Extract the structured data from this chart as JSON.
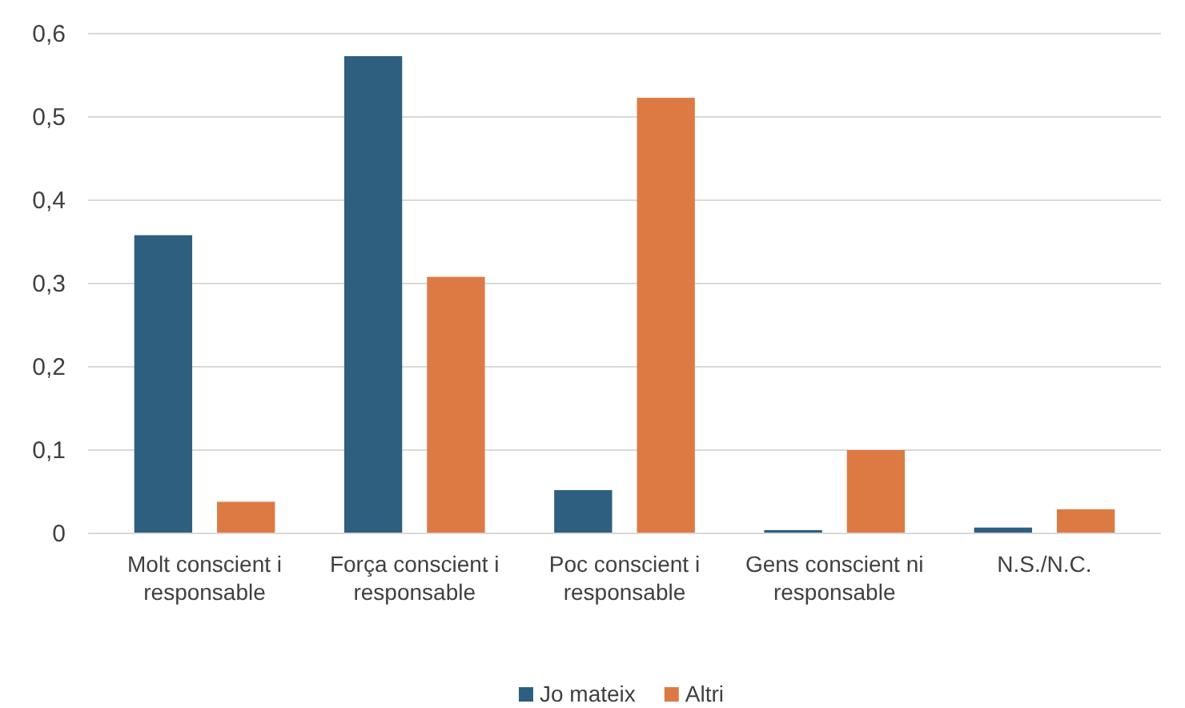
{
  "chart_data": {
    "type": "bar",
    "categories": [
      "Molt conscient i responsable",
      "Força conscient i responsable",
      "Poc conscient i responsable",
      "Gens conscient ni responsable",
      "N.S./N.C."
    ],
    "series": [
      {
        "name": "Jo mateix",
        "color": "#2e5f7f",
        "values": [
          0.358,
          0.573,
          0.052,
          0.004,
          0.007
        ]
      },
      {
        "name": "Altri",
        "color": "#dd7a44",
        "values": [
          0.038,
          0.308,
          0.523,
          0.1,
          0.029
        ]
      }
    ],
    "ylim": [
      0,
      0.6
    ],
    "yticks": [
      0,
      {
        "value": 0.1,
        "label": "0,1"
      },
      {
        "value": 0.2,
        "label": "0,2"
      },
      {
        "value": 0.3,
        "label": "0,3"
      },
      {
        "value": 0.4,
        "label": "0,4"
      },
      {
        "value": 0.5,
        "label": "0,5"
      },
      {
        "value": 0.6,
        "label": "0,6"
      }
    ],
    "grid": "y",
    "legend": "bottom"
  }
}
